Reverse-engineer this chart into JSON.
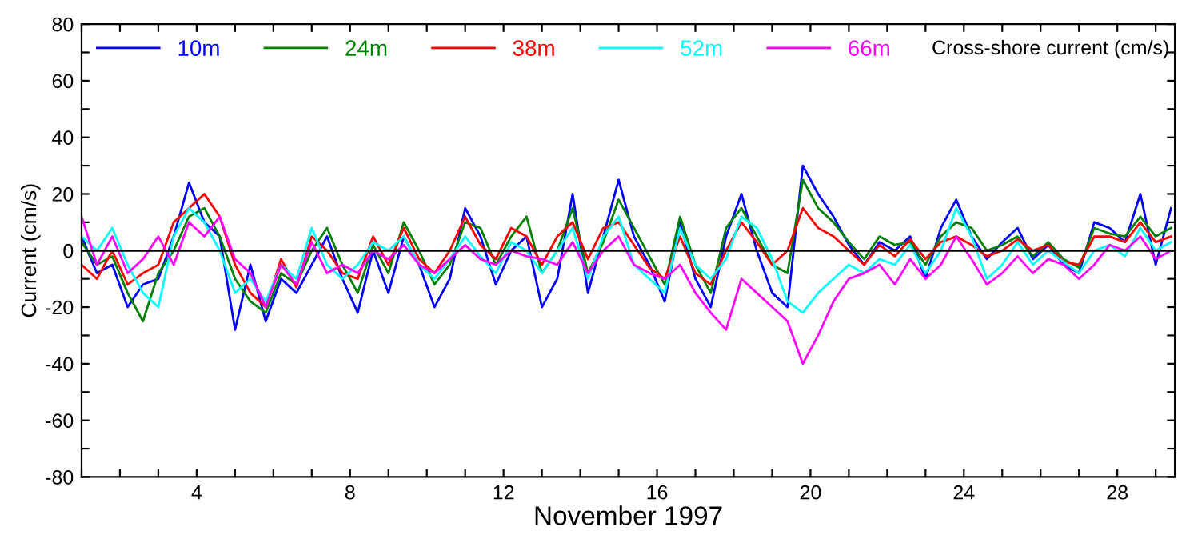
{
  "chart_data": {
    "type": "line",
    "xlabel": "November 1997",
    "ylabel": "Current (cm/s)",
    "annotations": [
      "Cross-shore current (cm/s)"
    ],
    "x": [
      1.0,
      1.4,
      1.8,
      2.2,
      2.6,
      3.0,
      3.4,
      3.8,
      4.2,
      4.6,
      5.0,
      5.4,
      5.8,
      6.2,
      6.6,
      7.0,
      7.4,
      7.8,
      8.2,
      8.6,
      9.0,
      9.4,
      9.8,
      10.2,
      10.6,
      11.0,
      11.4,
      11.8,
      12.2,
      12.6,
      13.0,
      13.4,
      13.8,
      14.2,
      14.6,
      15.0,
      15.4,
      15.8,
      16.2,
      16.6,
      17.0,
      17.4,
      17.8,
      18.2,
      18.6,
      19.0,
      19.4,
      19.8,
      20.2,
      20.6,
      21.0,
      21.4,
      21.8,
      22.2,
      22.6,
      23.0,
      23.4,
      23.8,
      24.2,
      24.6,
      25.0,
      25.4,
      25.8,
      26.2,
      26.6,
      27.0,
      27.4,
      27.8,
      28.2,
      28.6,
      29.0,
      29.4
    ],
    "series": [
      {
        "name": "10m",
        "color": "#0000ff",
        "values": [
          5,
          -8,
          -5,
          -20,
          -12,
          -10,
          5,
          24,
          10,
          5,
          -28,
          -5,
          -25,
          -10,
          -15,
          -5,
          5,
          -10,
          -22,
          0,
          -15,
          5,
          -5,
          -20,
          -10,
          15,
          5,
          -12,
          0,
          5,
          -20,
          -10,
          20,
          -15,
          5,
          25,
          5,
          -5,
          -18,
          10,
          -10,
          -20,
          5,
          20,
          0,
          -15,
          -20,
          30,
          20,
          12,
          2,
          -5,
          3,
          0,
          5,
          -10,
          8,
          18,
          5,
          -3,
          3,
          8,
          -3,
          2,
          -5,
          -8,
          10,
          8,
          3,
          20,
          -5,
          15
        ]
      },
      {
        "name": "24m",
        "color": "#008000",
        "values": [
          3,
          -5,
          -2,
          -15,
          -25,
          -8,
          0,
          12,
          15,
          5,
          -10,
          -18,
          -22,
          -8,
          -12,
          0,
          8,
          -5,
          -15,
          2,
          -8,
          10,
          0,
          -12,
          -5,
          10,
          8,
          -5,
          5,
          12,
          -8,
          0,
          15,
          -8,
          3,
          18,
          8,
          -2,
          -12,
          12,
          -5,
          -15,
          8,
          15,
          5,
          -5,
          -8,
          25,
          15,
          10,
          3,
          -3,
          5,
          2,
          3,
          -5,
          5,
          10,
          8,
          0,
          2,
          5,
          -2,
          3,
          -3,
          -6,
          8,
          6,
          5,
          12,
          5,
          8
        ]
      },
      {
        "name": "38m",
        "color": "#ff0000",
        "values": [
          -5,
          -10,
          0,
          -12,
          -8,
          -5,
          10,
          15,
          20,
          12,
          -5,
          -15,
          -20,
          -3,
          -13,
          5,
          0,
          -8,
          -10,
          5,
          -5,
          8,
          -3,
          -8,
          0,
          12,
          2,
          -3,
          8,
          5,
          -5,
          5,
          10,
          -3,
          8,
          10,
          2,
          -6,
          -10,
          5,
          -8,
          -12,
          0,
          10,
          3,
          -5,
          0,
          15,
          8,
          5,
          0,
          -5,
          2,
          -2,
          4,
          -3,
          3,
          5,
          2,
          -2,
          0,
          4,
          0,
          2,
          -4,
          -5,
          5,
          5,
          3,
          10,
          3,
          5
        ]
      },
      {
        "name": "52m",
        "color": "#00ffff",
        "values": [
          5,
          0,
          8,
          -5,
          -15,
          -20,
          5,
          15,
          10,
          0,
          -15,
          -10,
          -18,
          -5,
          -10,
          8,
          -5,
          -10,
          -5,
          3,
          0,
          5,
          -5,
          -10,
          -3,
          5,
          -2,
          -8,
          3,
          0,
          -8,
          0,
          8,
          -10,
          5,
          12,
          -5,
          -10,
          -15,
          8,
          -5,
          -10,
          -3,
          12,
          8,
          -3,
          -18,
          -22,
          -15,
          -10,
          -5,
          -8,
          -3,
          -5,
          2,
          -8,
          0,
          15,
          5,
          -10,
          -5,
          3,
          -5,
          0,
          -4,
          -8,
          0,
          2,
          -2,
          8,
          0,
          3
        ]
      },
      {
        "name": "66m",
        "color": "#ff00ff",
        "values": [
          12,
          -5,
          5,
          -8,
          -3,
          5,
          -5,
          10,
          5,
          12,
          -3,
          -8,
          -20,
          -5,
          -12,
          3,
          -8,
          -5,
          -8,
          0,
          -3,
          2,
          -5,
          -8,
          -3,
          2,
          -3,
          -5,
          0,
          -2,
          -3,
          -5,
          3,
          -8,
          0,
          5,
          -5,
          -8,
          -10,
          -5,
          -15,
          -22,
          -28,
          -10,
          -15,
          -20,
          -25,
          -40,
          -30,
          -18,
          -10,
          -8,
          -5,
          -12,
          -3,
          -10,
          -5,
          5,
          -3,
          -12,
          -8,
          -2,
          -8,
          -3,
          -5,
          -10,
          -5,
          2,
          0,
          5,
          -3,
          0
        ]
      }
    ],
    "xlim": [
      1,
      29.5
    ],
    "xticks": [
      {
        "value": 1,
        "label": null
      },
      {
        "value": 2,
        "label": null
      },
      {
        "value": 3,
        "label": null
      },
      4,
      {
        "value": 5,
        "label": null
      },
      {
        "value": 6,
        "label": null
      },
      {
        "value": 7,
        "label": null
      },
      8,
      {
        "value": 9,
        "label": null
      },
      {
        "value": 10,
        "label": null
      },
      {
        "value": 11,
        "label": null
      },
      12,
      {
        "value": 13,
        "label": null
      },
      {
        "value": 14,
        "label": null
      },
      {
        "value": 15,
        "label": null
      },
      16,
      {
        "value": 17,
        "label": null
      },
      {
        "value": 18,
        "label": null
      },
      {
        "value": 19,
        "label": null
      },
      20,
      {
        "value": 21,
        "label": null
      },
      {
        "value": 22,
        "label": null
      },
      {
        "value": 23,
        "label": null
      },
      24,
      {
        "value": 25,
        "label": null
      },
      {
        "value": 26,
        "label": null
      },
      {
        "value": 27,
        "label": null
      },
      28,
      {
        "value": 29,
        "label": null
      }
    ],
    "ylim": [
      -80,
      80
    ],
    "yticks": [
      -80,
      {
        "value": -70,
        "label": null
      },
      -60,
      {
        "value": -50,
        "label": null
      },
      -40,
      {
        "value": -30,
        "label": null
      },
      -20,
      {
        "value": -10,
        "label": null
      },
      0,
      {
        "value": 10,
        "label": null
      },
      20,
      {
        "value": 30,
        "label": null
      },
      40,
      {
        "value": 50,
        "label": null
      },
      60,
      {
        "value": 70,
        "label": null
      },
      80
    ],
    "ref_lines": [
      {
        "axis": "y",
        "value": 0,
        "color": "#000000"
      }
    ],
    "legend": "top left",
    "grid": false,
    "marker": "none",
    "line_style": "solid"
  }
}
